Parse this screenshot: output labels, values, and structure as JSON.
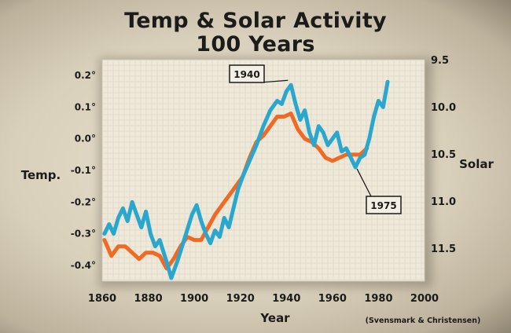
{
  "title": "Temp & Solar Activity",
  "subtitle": "100 Years",
  "source": "(Svensmark & Christensen)",
  "colors": {
    "temp": "#f06a24",
    "solar": "#2aa7cf",
    "grid": "#e3dccc",
    "plot_bg": "#efe9d9"
  },
  "chart_data": {
    "type": "line",
    "title": "Temp & Solar Activity",
    "subtitle": "100 Years",
    "xlabel": "Year",
    "ylabel": "Temp.",
    "y2label": "Solar",
    "xlim": [
      1860,
      2000
    ],
    "ylim": [
      -0.45,
      0.25
    ],
    "y2lim": [
      11.85,
      9.5
    ],
    "y2_inverted": true,
    "grid": true,
    "x_ticks": [
      1860,
      1880,
      1900,
      1920,
      1940,
      1960,
      1980,
      2000
    ],
    "y_ticks": [
      {
        "value": 0.2,
        "label": "0.2°"
      },
      {
        "value": 0.1,
        "label": "0.1°"
      },
      {
        "value": 0.0,
        "label": "0.0°"
      },
      {
        "value": -0.1,
        "label": "-0.1°"
      },
      {
        "value": -0.2,
        "label": "-0.2°"
      },
      {
        "value": -0.3,
        "label": "-0.3°"
      },
      {
        "value": -0.4,
        "label": "-0.4°"
      }
    ],
    "y2_ticks": [
      {
        "value": 9.5,
        "label": "9.5"
      },
      {
        "value": 10.0,
        "label": "10.0"
      },
      {
        "value": 10.5,
        "label": "10.5"
      },
      {
        "value": 11.0,
        "label": "11.0"
      },
      {
        "value": 11.5,
        "label": "11.5"
      }
    ],
    "annotations": [
      {
        "text": "1940",
        "x": 1940,
        "y": 0.175
      },
      {
        "text": "1975",
        "x": 1970,
        "y": -0.085
      }
    ],
    "series": [
      {
        "axis": "y",
        "color": "#f06a24",
        "x": [
          1861,
          1864,
          1867,
          1870,
          1873,
          1876,
          1879,
          1882,
          1885,
          1888,
          1891,
          1894,
          1897,
          1900,
          1903,
          1906,
          1909,
          1912,
          1915,
          1918,
          1921,
          1924,
          1927,
          1930,
          1933,
          1936,
          1939,
          1942,
          1945,
          1948,
          1951,
          1954,
          1957,
          1960,
          1963,
          1966,
          1969,
          1972,
          1975
        ],
        "y": [
          -0.32,
          -0.37,
          -0.34,
          -0.34,
          -0.36,
          -0.38,
          -0.36,
          -0.36,
          -0.37,
          -0.41,
          -0.38,
          -0.34,
          -0.31,
          -0.32,
          -0.32,
          -0.28,
          -0.24,
          -0.21,
          -0.18,
          -0.15,
          -0.12,
          -0.06,
          -0.01,
          0.01,
          0.04,
          0.07,
          0.07,
          0.08,
          0.03,
          0.0,
          -0.01,
          -0.03,
          -0.06,
          -0.07,
          -0.06,
          -0.05,
          -0.05,
          -0.05,
          -0.03
        ]
      },
      {
        "axis": "y",
        "color": "#2aa7cf",
        "x": [
          1861,
          1863,
          1865,
          1867,
          1869,
          1871,
          1873,
          1875,
          1877,
          1879,
          1881,
          1883,
          1885,
          1888,
          1890,
          1893,
          1896,
          1899,
          1901,
          1903,
          1905,
          1907,
          1909,
          1911,
          1913,
          1915,
          1917,
          1919,
          1921,
          1924,
          1927,
          1930,
          1933,
          1936,
          1938,
          1940,
          1942,
          1944,
          1946,
          1948,
          1950,
          1952,
          1954,
          1956,
          1958,
          1960,
          1962,
          1964,
          1966,
          1968,
          1970,
          1972,
          1974,
          1976,
          1978,
          1980,
          1982,
          1984
        ],
        "y": [
          -0.3,
          -0.27,
          -0.3,
          -0.25,
          -0.22,
          -0.26,
          -0.2,
          -0.24,
          -0.28,
          -0.23,
          -0.3,
          -0.34,
          -0.32,
          -0.39,
          -0.44,
          -0.38,
          -0.31,
          -0.24,
          -0.21,
          -0.26,
          -0.3,
          -0.33,
          -0.29,
          -0.31,
          -0.25,
          -0.28,
          -0.22,
          -0.16,
          -0.12,
          -0.07,
          -0.02,
          0.04,
          0.09,
          0.12,
          0.11,
          0.15,
          0.17,
          0.11,
          0.06,
          0.09,
          0.02,
          -0.02,
          0.04,
          0.02,
          -0.02,
          0.0,
          0.02,
          -0.04,
          -0.03,
          -0.06,
          -0.09,
          -0.06,
          -0.05,
          0.0,
          0.07,
          0.12,
          0.1,
          0.18
        ]
      }
    ]
  }
}
